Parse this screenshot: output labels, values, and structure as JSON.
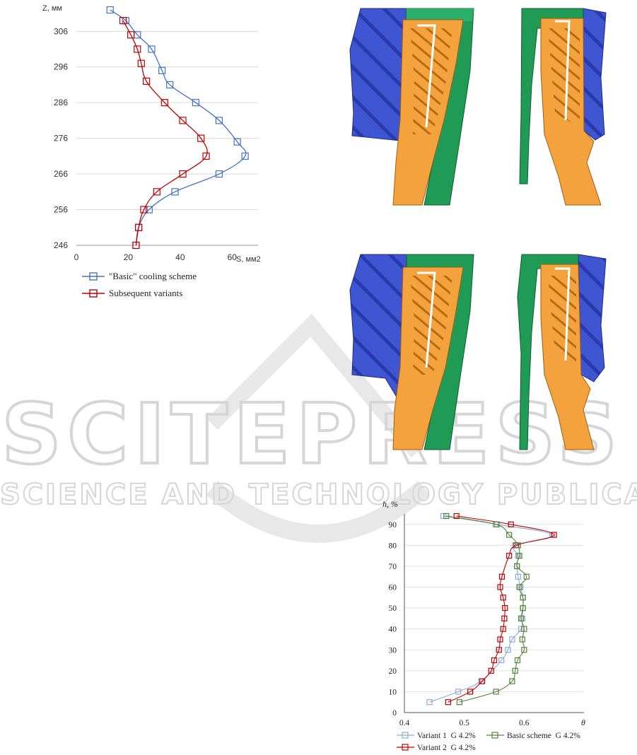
{
  "watermark": {
    "line1": "SCITEPRESS",
    "line2": "SCIENCE AND TECHNOLOGY PUBLICATIONS"
  },
  "chart_data": [
    {
      "type": "line",
      "xlabel": "S, мм2",
      "ylabel": "Z, мм",
      "xlim": [
        0,
        70
      ],
      "ylim": [
        246,
        312
      ],
      "xticks": [
        0,
        20,
        40,
        60
      ],
      "yticks": [
        246,
        256,
        266,
        276,
        286,
        296,
        306
      ],
      "grid": "horizontal",
      "legend": "bottom",
      "series": [
        {
          "name": "\"Basic\" cooling scheme",
          "color": "#4472c4",
          "x": [
            13,
            19,
            23.5,
            29,
            33,
            36,
            46,
            55,
            62,
            65,
            55,
            38,
            28,
            24,
            23
          ],
          "y": [
            312,
            309,
            305,
            301,
            295,
            291,
            286,
            281,
            275,
            271,
            266,
            261,
            256,
            251,
            246
          ]
        },
        {
          "name": "Subsequent variants",
          "color": "#c00000",
          "x": [
            18,
            21,
            23.5,
            25,
            27,
            34,
            41,
            48,
            50,
            41,
            31,
            26,
            24,
            23
          ],
          "y": [
            309,
            305,
            301,
            297,
            292,
            286,
            281,
            276,
            271,
            266,
            261,
            256,
            251,
            246
          ]
        }
      ]
    },
    {
      "type": "line",
      "xlabel": "θ",
      "ylabel": "h, %",
      "xlim": [
        0.4,
        0.7
      ],
      "ylim": [
        0,
        95
      ],
      "xticks": [
        0.4,
        0.5,
        0.6
      ],
      "xtick_labels": [
        "0.4",
        "0.5",
        "0.6"
      ],
      "yticks": [
        0,
        10,
        20,
        30,
        40,
        50,
        60,
        70,
        80,
        90
      ],
      "grid": "horizontal",
      "legend": "bottom",
      "series": [
        {
          "name": "Variant 1  G 4.2%",
          "color": "#8eaadb",
          "x": [
            0.465,
            0.555,
            0.647,
            0.585,
            0.59,
            0.588,
            0.59,
            0.594,
            0.598,
            0.598,
            0.597,
            0.595,
            0.58,
            0.573,
            0.562,
            0.528,
            0.49,
            0.442
          ],
          "y": [
            94,
            90,
            85,
            80,
            75,
            70,
            65,
            60,
            55,
            50,
            45,
            40,
            35,
            30,
            25,
            15,
            10,
            5
          ]
        },
        {
          "name": "Variant 2  G 4.2%",
          "color": "#c00000",
          "x": [
            0.487,
            0.578,
            0.65,
            0.587,
            0.575,
            0.563,
            0.56,
            0.565,
            0.568,
            0.567,
            0.565,
            0.56,
            0.558,
            0.55,
            0.545,
            0.53,
            0.51,
            0.473
          ],
          "y": [
            94,
            90,
            85,
            80,
            75,
            65,
            60,
            55,
            50,
            45,
            40,
            35,
            30,
            25,
            20,
            15,
            10,
            5
          ]
        },
        {
          "name": "Basic scheme  G 4.2%",
          "color": "#548235",
          "x": [
            0.47,
            0.553,
            0.575,
            0.59,
            0.592,
            0.588,
            0.604,
            0.592,
            0.598,
            0.598,
            0.595,
            0.6,
            0.597,
            0.6,
            0.589,
            0.585,
            0.58,
            0.553,
            0.492
          ],
          "y": [
            94,
            90,
            85,
            80,
            75,
            70,
            65,
            60,
            55,
            50,
            45,
            40,
            35,
            30,
            25,
            20,
            15,
            10,
            5
          ]
        }
      ]
    }
  ]
}
